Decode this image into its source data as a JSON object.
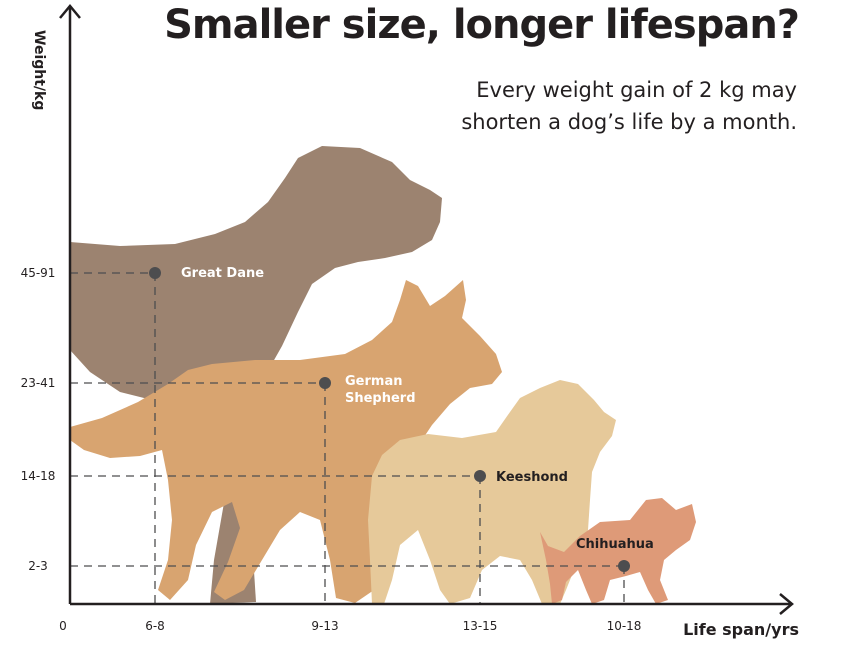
{
  "title": "Smaller size, longer lifespan?",
  "subtitle_lines": [
    "Every weight gain of 2 kg may",
    "shorten a dog’s life by a month."
  ],
  "colors": {
    "great_dane": "#9c8370",
    "german_shepherd": "#d8a470",
    "keeshond": "#e6c99a",
    "chihuahua": "#de9a78",
    "axis": "#231f20",
    "marker": "#4d4d4f",
    "guide": "#4d4d4f"
  },
  "chart_data": {
    "type": "scatter",
    "title": "Smaller size, longer lifespan?",
    "xlabel": "Life span/yrs",
    "ylabel": "Weight/kg",
    "x_origin_label": "0",
    "x_categories": [
      "6-8",
      "9-13",
      "13-15",
      "10-18"
    ],
    "y_categories": [
      "2-3",
      "14-18",
      "23-41",
      "45-91"
    ],
    "grid": false,
    "points": [
      {
        "name": "Great Dane",
        "x": "6-8",
        "y": "45-91"
      },
      {
        "name": "German Shepherd",
        "x": "9-13",
        "y": "23-41"
      },
      {
        "name": "Keeshond",
        "x": "13-15",
        "y": "14-18"
      },
      {
        "name": "Chihuahua",
        "x": "10-18",
        "y": "2-3"
      }
    ]
  }
}
